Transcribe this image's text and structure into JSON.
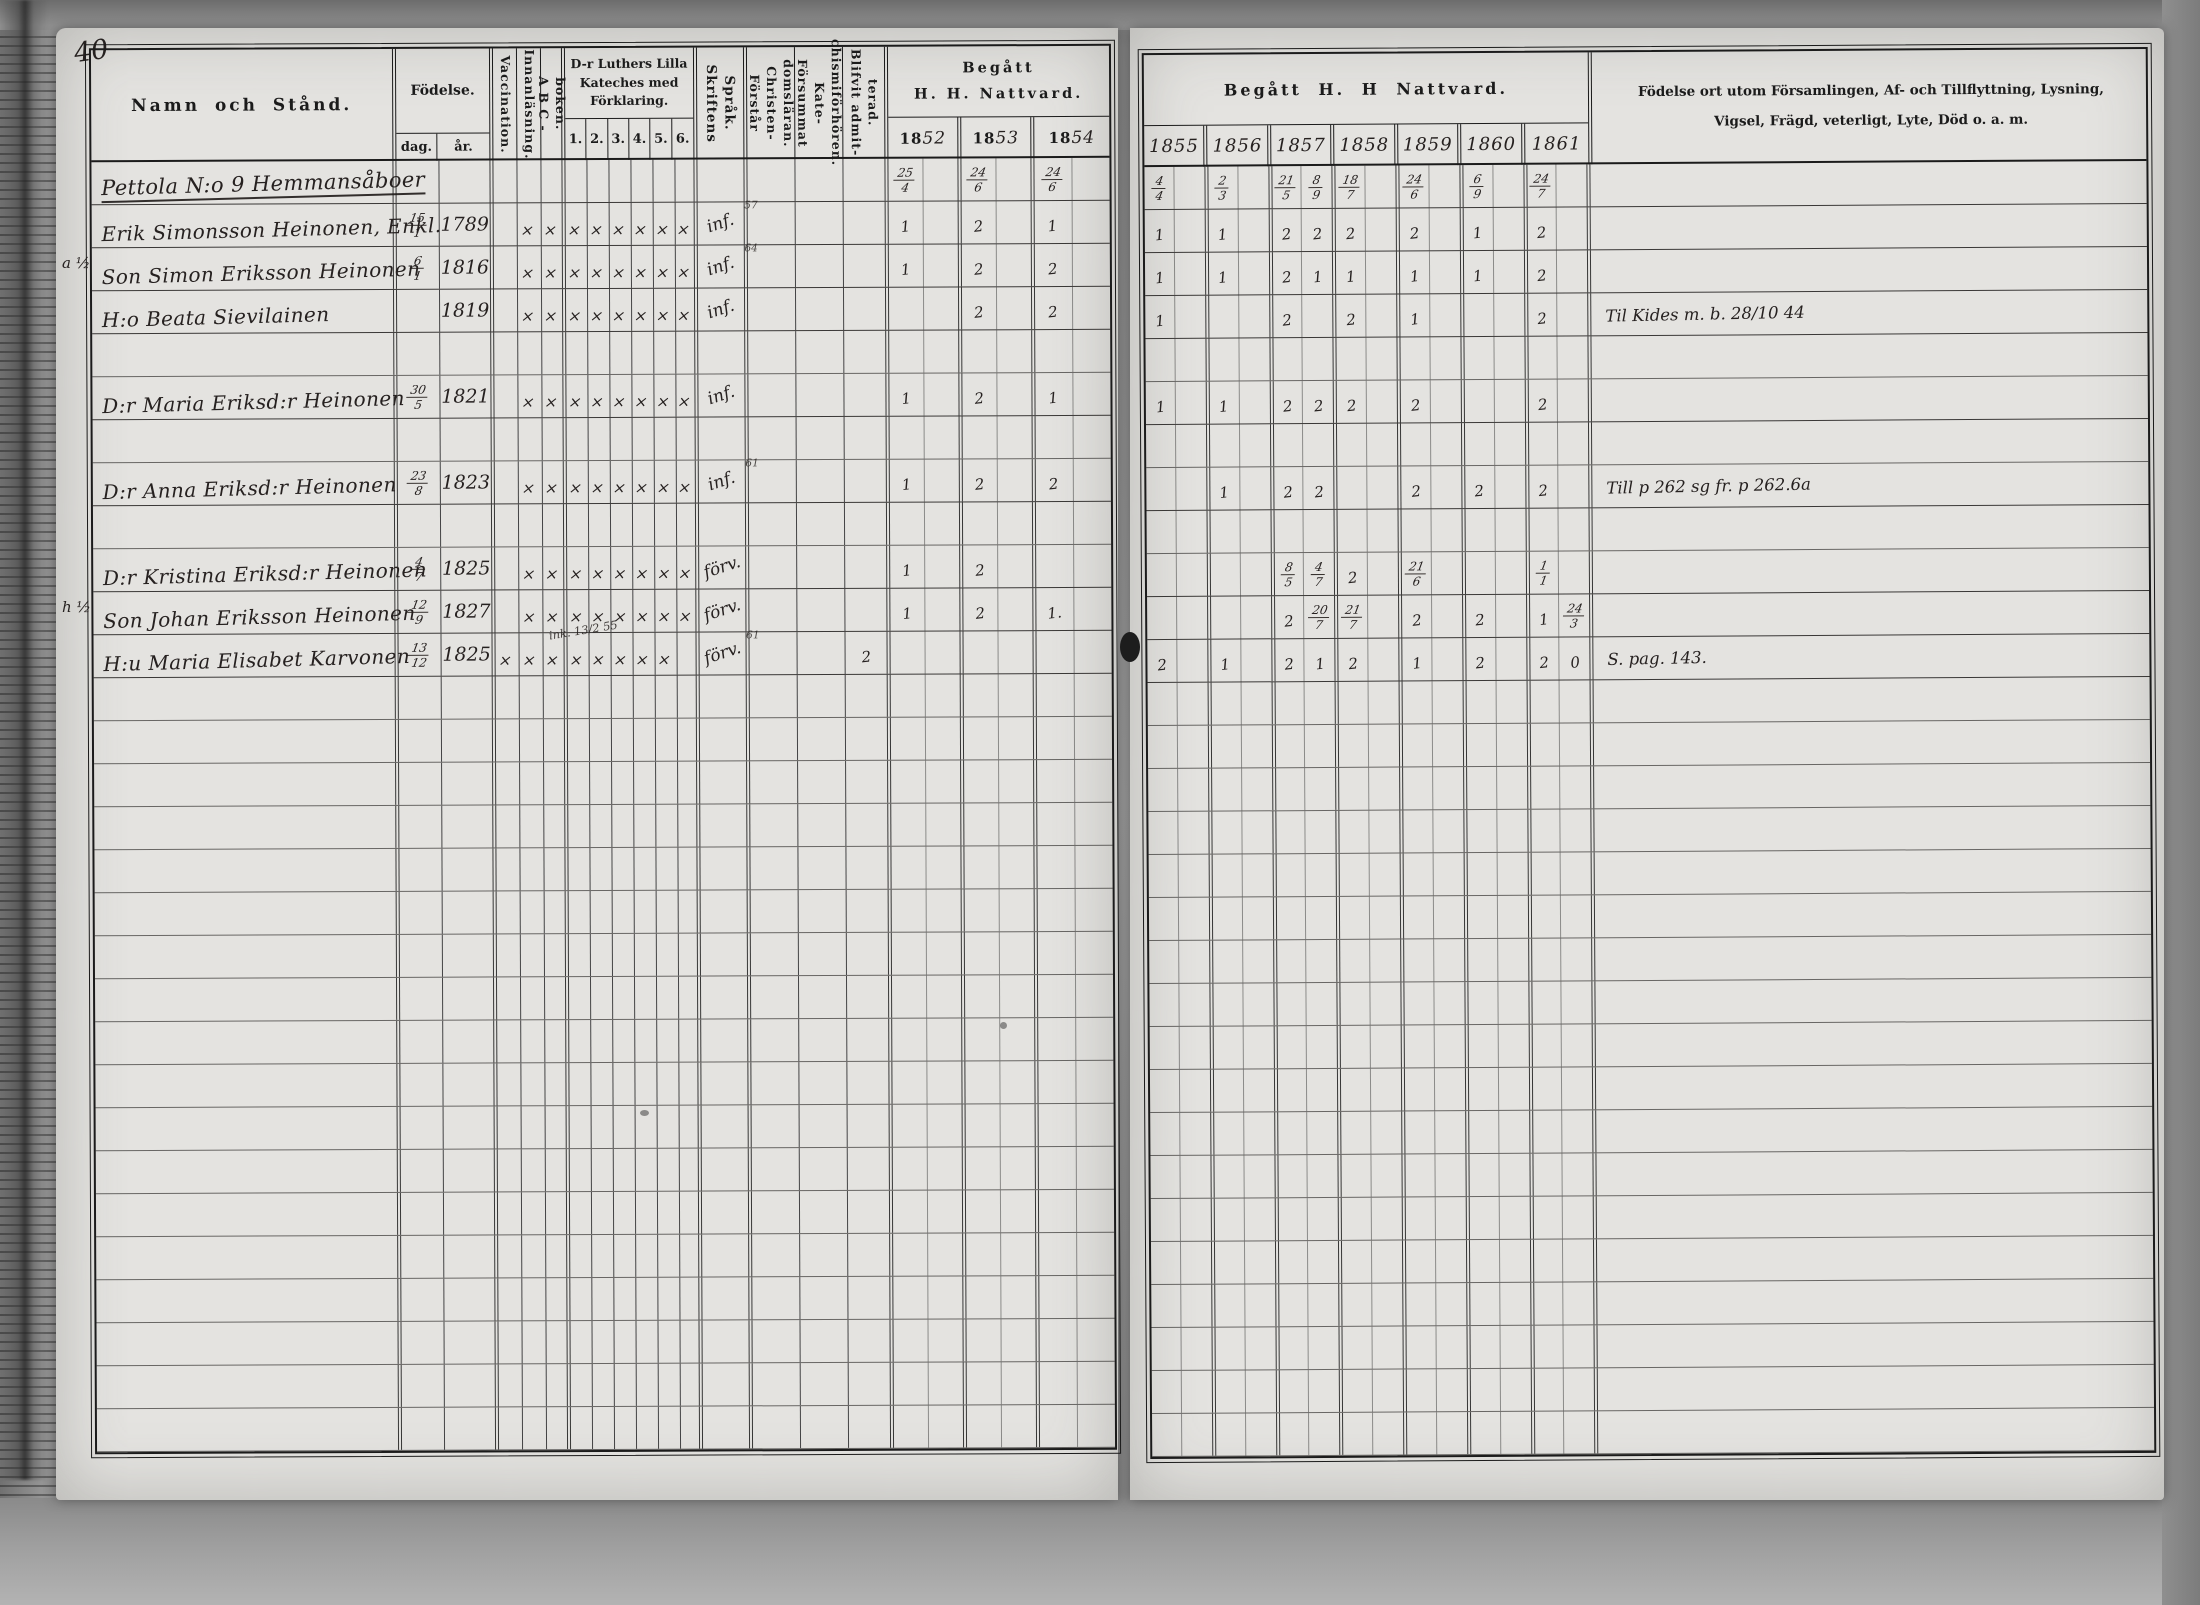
{
  "scan": {
    "page_number": "40"
  },
  "colors": {
    "paper": "#e4e3e0",
    "ink": "#262120",
    "print": "#1b1b1b",
    "background": "#8f8f8f"
  },
  "left_page": {
    "header": {
      "namn": "Namn och Stånd.",
      "fodelse": "Födelse.",
      "dag": "dag.",
      "ar": "år.",
      "vaccination": "Vaccination.",
      "innanlasning": "Innanläsning.",
      "abc_boken": "A B C - boken.",
      "kateches_title": "D-r Luthers Lilla\nKateches med\nFörklaring.",
      "kateches_cols": [
        "1.",
        "2.",
        "3.",
        "4.",
        "5.",
        "6."
      ],
      "sprak": "Skriftens Språk.",
      "forstar": "Förstår Christen-\ndomsläran.",
      "forsummat": "Försummat Kate-\nchismiförhören.",
      "blifvit": "Blifvit admit-\nterad.",
      "begatt": "Begått\nH. H. Nattvard."
    },
    "years": [
      "1852",
      "1853",
      "1854"
    ]
  },
  "right_page": {
    "header": {
      "begatt": "Begått H. H Nattvard.",
      "notes_title": "Födelse ort utom Församlingen, Af- och Tillflyttning, Lysning,\nVigsel, Frägd, veterligt, Lyte, Död o. a. m."
    },
    "years": [
      "1855",
      "1856",
      "1857",
      "1858",
      "1859",
      "1860",
      "1861"
    ]
  },
  "margin_notes": [
    {
      "row": 2,
      "text": "a ½"
    },
    {
      "row": 10,
      "text": "h ½"
    }
  ],
  "rows": [
    {
      "farm": true,
      "name": "Pettola N:o 9 Hemmansåboer",
      "left": [
        "25/4",
        "24/6",
        "24/6"
      ],
      "right": [
        "4/4",
        "2/3",
        "21/5 8/9",
        "18/7",
        "24/6",
        "6/9",
        "24/7"
      ]
    },
    {
      "name": "Erik Simonsson Heinonen, Enkl.",
      "dag": "15/1",
      "ar": "1789",
      "marks": [
        "",
        "×",
        "×",
        "×",
        "×",
        "×",
        "×",
        "×",
        "×"
      ],
      "sprak": "inf.",
      "sup": "57",
      "left": [
        "1",
        "2",
        "1"
      ],
      "right": [
        "1",
        "1",
        "2 2",
        "2",
        "2",
        "1",
        "2"
      ]
    },
    {
      "name": "Son Simon Eriksson Heinonen",
      "dag": "6/1",
      "ar": "1816",
      "marks": [
        "",
        "×",
        "×",
        "×",
        "×",
        "×",
        "×",
        "×",
        "×"
      ],
      "sprak": "inf.",
      "sup": "64",
      "left": [
        "1",
        "2",
        "2"
      ],
      "right": [
        "1",
        "1",
        "2 1",
        "1",
        "1",
        "1",
        "2"
      ]
    },
    {
      "name": "H:o Beata Sievilainen",
      "dag": "",
      "ar": "1819",
      "marks": [
        "",
        "×",
        "×",
        "×",
        "×",
        "×",
        "×",
        "×",
        "×"
      ],
      "sprak": "inf.",
      "left": [
        "",
        "2",
        "2"
      ],
      "right": [
        "1",
        "",
        "2",
        "2",
        "1",
        "",
        "2"
      ],
      "note": "Til Kides m. b. 28/10 44"
    },
    {},
    {
      "name": "D:r Maria Eriksd:r Heinonen",
      "dag": "30/5",
      "ar": "1821",
      "marks": [
        "",
        "×",
        "×",
        "×",
        "×",
        "×",
        "×",
        "×",
        "×"
      ],
      "sprak": "inf.",
      "left": [
        "1",
        "2",
        "1"
      ],
      "right": [
        "1",
        "1",
        "2 2",
        "2",
        "2",
        "",
        "2"
      ]
    },
    {},
    {
      "name": "D:r Anna Eriksd:r Heinonen",
      "dag": "23/8",
      "ar": "1823",
      "marks": [
        "",
        "×",
        "×",
        "×",
        "×",
        "×",
        "×",
        "×",
        "×"
      ],
      "sprak": "inf.",
      "sup": "61",
      "left": [
        "1",
        "2",
        "2"
      ],
      "right": [
        "",
        "1",
        "2 2",
        "",
        "2",
        "2",
        "2"
      ],
      "note": "Till p 262 sg fr. p 262.6a"
    },
    {},
    {
      "name": "D:r Kristina Eriksd:r Heinonen",
      "dag": "4/7",
      "ar": "1825",
      "marks": [
        "",
        "×",
        "×",
        "×",
        "×",
        "×",
        "×",
        "×",
        "×"
      ],
      "sprak": "förv.",
      "left": [
        "1",
        "2",
        ""
      ],
      "right": [
        "",
        "",
        "8/5 4/7",
        "2",
        "21/6",
        "",
        "1/1"
      ]
    },
    {
      "name": "Son Johan Eriksson Heinonen",
      "dag": "12/9",
      "ar": "1827",
      "marks": [
        "",
        "×",
        "×",
        "×",
        "×",
        "×",
        "×",
        "×",
        "×"
      ],
      "sprak": "förv.",
      "left": [
        "1",
        "2",
        "1."
      ],
      "right": [
        "",
        "",
        "2 20/7",
        "21/7",
        "2",
        "2",
        "1 24/3"
      ]
    },
    {
      "name": "H:u Maria Elisabet Karvonen",
      "dag": "13/12",
      "ar": "1825",
      "marks": [
        "×",
        "×",
        "×",
        "×",
        "×",
        "×",
        "×",
        "×",
        ""
      ],
      "sprak": "förv.",
      "sup": "61",
      "extra": "ink. 13/2 55",
      "blifvit": "2",
      "left": [
        "",
        "",
        ""
      ],
      "right": [
        "2",
        "1",
        "2 1",
        "2",
        "1",
        "2",
        "2 0"
      ],
      "note": "S. pag. 143."
    },
    {},
    {},
    {},
    {},
    {},
    {},
    {},
    {},
    {},
    {},
    {},
    {},
    {},
    {},
    {},
    {},
    {},
    {}
  ]
}
